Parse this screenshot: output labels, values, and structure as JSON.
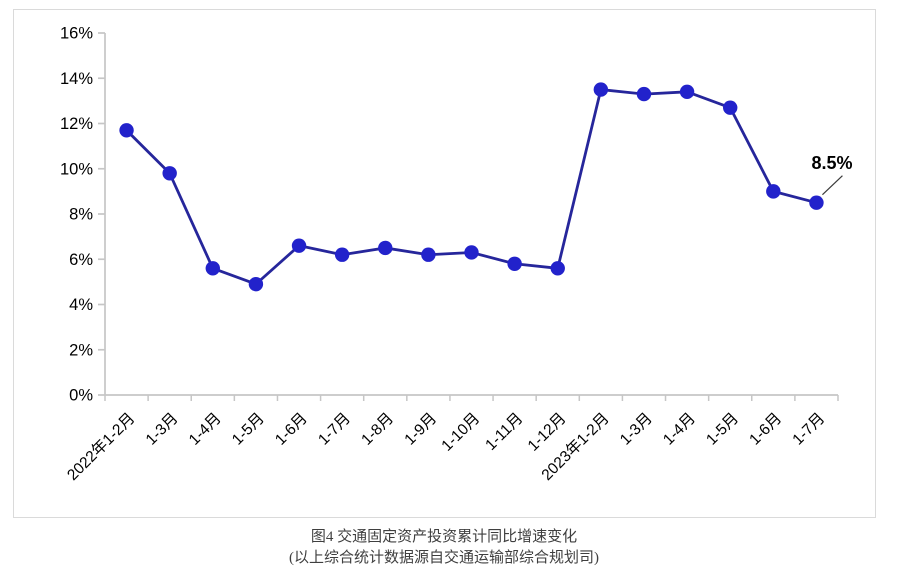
{
  "chart_data": {
    "type": "line",
    "categories": [
      "2022年1-2月",
      "1-3月",
      "1-4月",
      "1-5月",
      "1-6月",
      "1-7月",
      "1-8月",
      "1-9月",
      "1-10月",
      "1-11月",
      "1-12月",
      "2023年1-2月",
      "1-3月",
      "1-4月",
      "1-5月",
      "1-6月",
      "1-7月"
    ],
    "values": [
      11.7,
      9.8,
      5.6,
      4.9,
      6.6,
      6.2,
      6.5,
      6.2,
      6.3,
      5.8,
      5.6,
      13.5,
      13.3,
      13.4,
      12.7,
      9.0,
      8.5
    ],
    "ylim": [
      0,
      16
    ],
    "y_tick_step": 2,
    "y_tick_labels": [
      "0%",
      "2%",
      "4%",
      "6%",
      "8%",
      "10%",
      "12%",
      "14%",
      "16%"
    ],
    "grid": false,
    "legend_position": "none",
    "annotation": {
      "text": "8.5%",
      "target_category": "1-7月",
      "target_index": 16
    },
    "colors": {
      "line": "#26269B",
      "marker": "#2222CB",
      "axis": "#C6C6C6",
      "frame_border": "#DADADA",
      "annotation_text": "#000000",
      "leader_line": "#3a3a3a",
      "caption_text": "#3F3F3F"
    }
  },
  "caption": {
    "line1": "图4  交通固定资产投资累计同比增速变化",
    "line2": "(以上综合统计数据源自交通运输部综合规划司)"
  }
}
